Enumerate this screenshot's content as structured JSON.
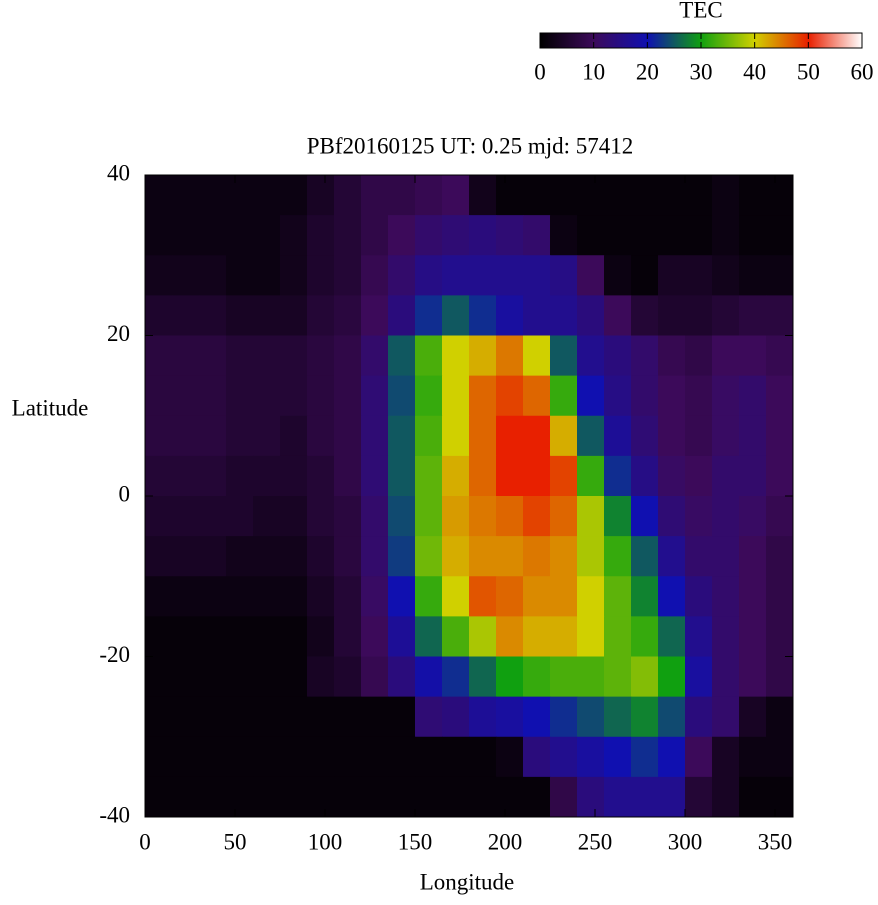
{
  "chart_data": {
    "type": "heatmap",
    "title": "PBf20160125  UT: 0.25  mjd: 57412",
    "x_label": "Longitude",
    "y_label": "Latitude",
    "colorbar_label": "TEC",
    "xlim": [
      0,
      360
    ],
    "ylim": [
      -40,
      40
    ],
    "xticks": [
      0,
      50,
      100,
      150,
      200,
      250,
      300,
      350
    ],
    "yticks": [
      -40,
      -20,
      0,
      20,
      40
    ],
    "clim": [
      0,
      60
    ],
    "cticks": [
      0,
      10,
      20,
      30,
      40,
      50,
      60
    ],
    "colormap": [
      "#000000",
      "#3c0a5a",
      "#1010b0",
      "#10a010",
      "#d0d000",
      "#e82000",
      "#ffffff"
    ],
    "x": [
      7.5,
      22.5,
      37.5,
      52.5,
      67.5,
      82.5,
      97.5,
      112.5,
      127.5,
      142.5,
      157.5,
      172.5,
      187.5,
      202.5,
      217.5,
      232.5,
      247.5,
      262.5,
      277.5,
      292.5,
      307.5,
      322.5,
      337.5,
      352.5
    ],
    "y": [
      37.5,
      32.5,
      27.5,
      22.5,
      17.5,
      12.5,
      7.5,
      2.5,
      -2.5,
      -7.5,
      -12.5,
      -17.5,
      -22.5,
      -27.5,
      -32.5,
      -37.5
    ],
    "z": [
      [
        2,
        2,
        2,
        2,
        2,
        2,
        4,
        6,
        8,
        8,
        9,
        10,
        3,
        1,
        1,
        1,
        1,
        1,
        1,
        1,
        1,
        2,
        1,
        1
      ],
      [
        2,
        2,
        2,
        2,
        2,
        3,
        5,
        6,
        8,
        10,
        12,
        13,
        14,
        13,
        12,
        2,
        1,
        1,
        1,
        1,
        1,
        2,
        1,
        1
      ],
      [
        3,
        3,
        3,
        2,
        2,
        3,
        5,
        6,
        9,
        12,
        15,
        16,
        16,
        16,
        16,
        15,
        10,
        2,
        1,
        4,
        4,
        3,
        2,
        2
      ],
      [
        5,
        5,
        5,
        4,
        4,
        4,
        6,
        7,
        10,
        14,
        22,
        25,
        22,
        18,
        16,
        16,
        14,
        10,
        6,
        5,
        5,
        6,
        7,
        7
      ],
      [
        7,
        7,
        7,
        6,
        6,
        6,
        7,
        8,
        12,
        25,
        33,
        40,
        42,
        45,
        40,
        25,
        16,
        14,
        12,
        9,
        8,
        10,
        10,
        9
      ],
      [
        7,
        7,
        7,
        6,
        6,
        6,
        7,
        8,
        13,
        24,
        32,
        40,
        46,
        48,
        46,
        32,
        20,
        15,
        12,
        10,
        9,
        11,
        12,
        10
      ],
      [
        7,
        7,
        7,
        6,
        6,
        5,
        7,
        8,
        13,
        25,
        33,
        40,
        46,
        50,
        50,
        42,
        25,
        17,
        13,
        10,
        9,
        11,
        12,
        10
      ],
      [
        6,
        6,
        6,
        5,
        5,
        5,
        6,
        8,
        13,
        25,
        34,
        42,
        46,
        50,
        50,
        48,
        32,
        22,
        15,
        11,
        10,
        12,
        12,
        10
      ],
      [
        5,
        5,
        5,
        5,
        4,
        4,
        6,
        7,
        12,
        24,
        34,
        43,
        45,
        46,
        48,
        46,
        38,
        28,
        20,
        13,
        11,
        12,
        11,
        9
      ],
      [
        4,
        4,
        4,
        3,
        3,
        3,
        5,
        7,
        12,
        23,
        35,
        42,
        44,
        44,
        45,
        44,
        38,
        32,
        25,
        16,
        12,
        12,
        10,
        8
      ],
      [
        2,
        2,
        2,
        2,
        2,
        2,
        4,
        6,
        11,
        20,
        32,
        40,
        47,
        46,
        44,
        44,
        40,
        34,
        28,
        20,
        14,
        12,
        10,
        8
      ],
      [
        1,
        1,
        1,
        1,
        1,
        1,
        3,
        6,
        10,
        17,
        26,
        33,
        38,
        44,
        42,
        42,
        40,
        34,
        32,
        26,
        16,
        12,
        10,
        8
      ],
      [
        1,
        1,
        1,
        1,
        1,
        1,
        4,
        5,
        9,
        14,
        19,
        22,
        26,
        30,
        32,
        33,
        33,
        34,
        36,
        30,
        18,
        12,
        10,
        8
      ],
      [
        1,
        1,
        1,
        1,
        1,
        1,
        1,
        1,
        1,
        1,
        13,
        14,
        17,
        18,
        20,
        22,
        24,
        26,
        28,
        24,
        14,
        12,
        4,
        2
      ],
      [
        1,
        1,
        1,
        1,
        1,
        1,
        1,
        1,
        1,
        1,
        1,
        1,
        1,
        2,
        14,
        16,
        18,
        20,
        22,
        20,
        10,
        4,
        2,
        2
      ],
      [
        1,
        1,
        1,
        1,
        1,
        1,
        1,
        1,
        1,
        1,
        1,
        1,
        1,
        1,
        1,
        8,
        14,
        16,
        16,
        16,
        6,
        4,
        1,
        1
      ]
    ]
  }
}
